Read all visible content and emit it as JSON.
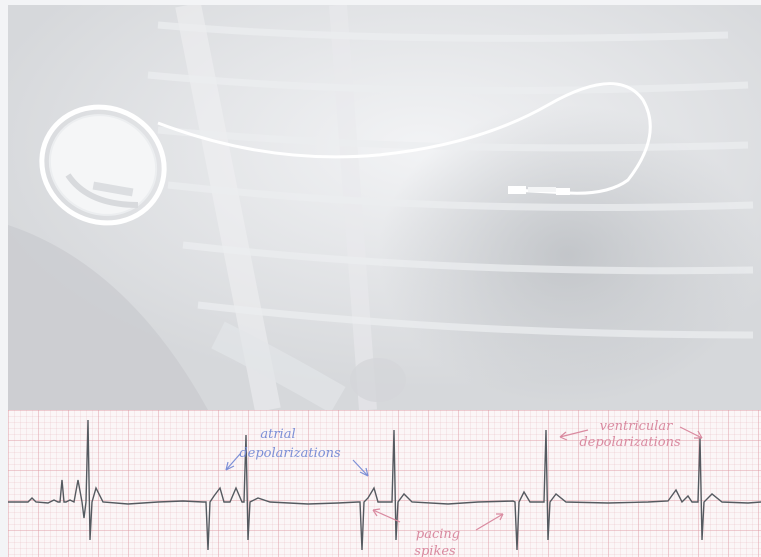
{
  "xray": {
    "subject": "thoracic radiograph with implanted pacemaker generator and pacing lead"
  },
  "ecg": {
    "annotations": {
      "atrial_line1": "atrial",
      "atrial_line2": "depolarizations",
      "ventricular_line1": "ventricular",
      "ventricular_line2": "depolarizations",
      "pacing_line1": "pacing",
      "pacing_line2": "spikes"
    },
    "colors": {
      "annotation_blue": "#7c8fd6",
      "annotation_pink": "#d98aa0",
      "trace": "#555a60",
      "grid": "#e6b4bb"
    }
  }
}
